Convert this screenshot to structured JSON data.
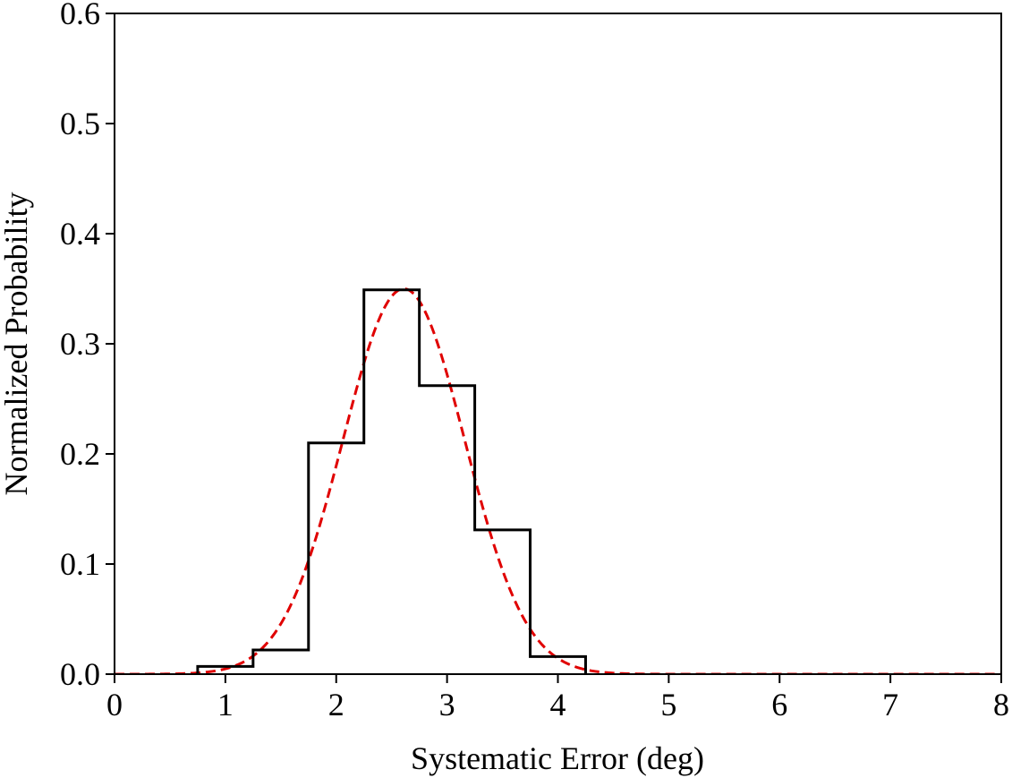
{
  "chart_data": {
    "type": "histogram",
    "xlabel": "Systematic Error (deg)",
    "ylabel": "Normalized Probability",
    "xlim": [
      0,
      8
    ],
    "ylim": [
      0,
      0.6
    ],
    "x_ticks": [
      "0",
      "1",
      "2",
      "3",
      "4",
      "5",
      "6",
      "7",
      "8"
    ],
    "y_ticks": [
      "0.0",
      "0.1",
      "0.2",
      "0.3",
      "0.4",
      "0.5",
      "0.6"
    ],
    "grid": false,
    "legend": "none",
    "series": [
      {
        "kind": "step-histogram",
        "color": "#000000",
        "bin_edges": [
          0.75,
          1.25,
          1.75,
          2.25,
          2.75,
          3.25,
          3.75,
          4.25
        ],
        "values": [
          0.007,
          0.022,
          0.21,
          0.349,
          0.262,
          0.131,
          0.016
        ]
      },
      {
        "kind": "gaussian-fit",
        "color": "#e00000",
        "line_style": "dashed",
        "mean": 2.61,
        "peak": 0.35,
        "sigma": 0.55,
        "x_range": [
          0,
          8
        ]
      }
    ]
  }
}
